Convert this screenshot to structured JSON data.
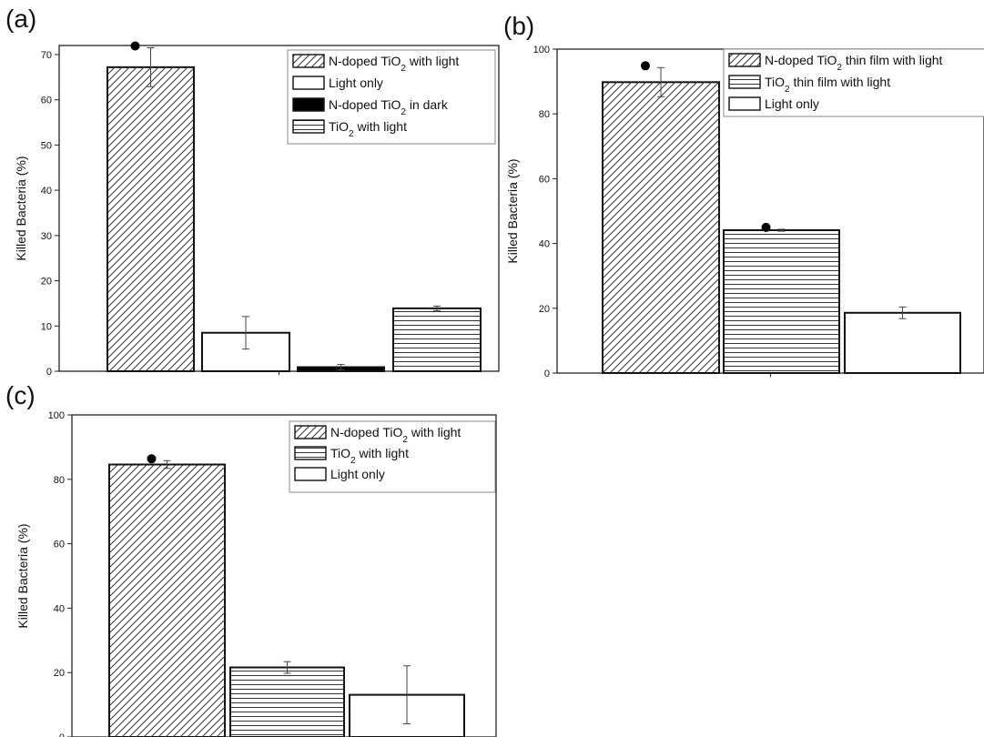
{
  "figure": {
    "panel_labels": [
      "(a)",
      "(b)",
      "(c)"
    ]
  },
  "chart_data": [
    {
      "panel": "(a)",
      "type": "bar",
      "ylabel": "Killed Bacteria (%)",
      "ylim": [
        0,
        72
      ],
      "yticks": [
        0,
        10,
        20,
        30,
        40,
        50,
        60,
        70
      ],
      "legend_position": "top-right",
      "grid": false,
      "series": [
        {
          "name": "N-doped TiO2 with light",
          "name_text": [
            "N-doped TiO",
            "2",
            " with light"
          ],
          "value": 67.2,
          "error": 4.3,
          "pattern": "diagonal",
          "significance_marker": true
        },
        {
          "name": "Light only",
          "name_text": [
            "Light only"
          ],
          "value": 8.5,
          "error": 3.6,
          "pattern": "empty",
          "significance_marker": false
        },
        {
          "name": "N-doped TiO2 in dark",
          "name_text": [
            "N-doped TiO",
            "2",
            " in dark"
          ],
          "value": 0.9,
          "error": 0.6,
          "pattern": "solid",
          "significance_marker": false
        },
        {
          "name": "TiO2 with light",
          "name_text": [
            "TiO",
            "2",
            " with light"
          ],
          "value": 13.9,
          "error": 0.5,
          "pattern": "horizontal",
          "significance_marker": false
        }
      ]
    },
    {
      "panel": "(b)",
      "type": "bar",
      "ylabel": "Killed Bacteria (%)",
      "ylim": [
        0,
        100
      ],
      "yticks": [
        0,
        20,
        40,
        60,
        80,
        100
      ],
      "legend_position": "top-right",
      "grid": false,
      "series": [
        {
          "name": "N-doped TiO2 thin film with light",
          "name_text": [
            "N-doped TiO",
            "2",
            " thin film with light"
          ],
          "value": 89.8,
          "error": 4.5,
          "pattern": "diagonal",
          "significance_marker": true
        },
        {
          "name": "TiO2 thin film with light",
          "name_text": [
            "TiO",
            "2",
            " thin film with light"
          ],
          "value": 44.1,
          "error": 0.3,
          "pattern": "horizontal",
          "significance_marker": true
        },
        {
          "name": "Light only",
          "name_text": [
            "Light only"
          ],
          "value": 18.6,
          "error": 1.8,
          "pattern": "empty",
          "significance_marker": false
        }
      ]
    },
    {
      "panel": "(c)",
      "type": "bar",
      "ylabel": "Killed Bacteria (%)",
      "ylim": [
        0,
        100
      ],
      "yticks": [
        0,
        20,
        40,
        60,
        80,
        100
      ],
      "legend_position": "top-right",
      "grid": false,
      "series": [
        {
          "name": "N-doped TiO2 with light",
          "name_text": [
            "N-doped TiO",
            "2",
            " with light"
          ],
          "value": 84.6,
          "error": 1.2,
          "pattern": "diagonal",
          "significance_marker": true
        },
        {
          "name": "TiO2 with light",
          "name_text": [
            "TiO",
            "2",
            " with light"
          ],
          "value": 21.6,
          "error": 1.8,
          "pattern": "horizontal",
          "significance_marker": false
        },
        {
          "name": "Light only",
          "name_text": [
            "Light only"
          ],
          "value": 13.1,
          "error": 9.0,
          "pattern": "empty",
          "significance_marker": false
        }
      ]
    }
  ]
}
